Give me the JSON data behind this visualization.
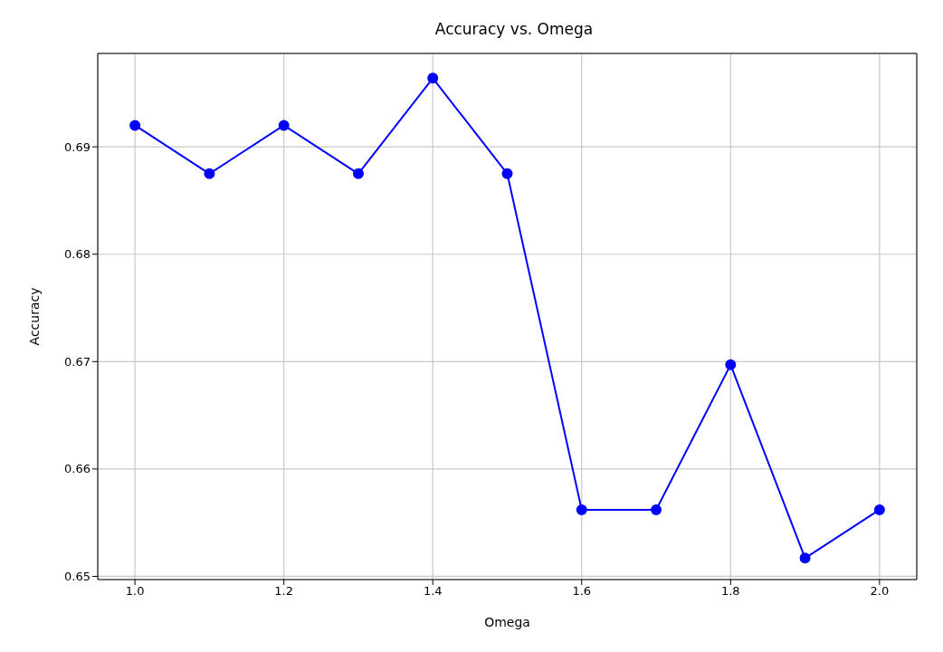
{
  "chart_data": {
    "type": "line",
    "title": "Accuracy vs. Omega",
    "xlabel": "Omega",
    "ylabel": "Accuracy",
    "x": [
      1.0,
      1.1,
      1.2,
      1.3,
      1.4,
      1.5,
      1.6,
      1.7,
      1.8,
      1.9,
      2.0
    ],
    "series": [
      {
        "color": "#0000ff",
        "values": [
          0.692,
          0.6875,
          0.692,
          0.6875,
          0.6964,
          0.6875,
          0.6562,
          0.6562,
          0.6697,
          0.6517,
          0.6562
        ]
      }
    ],
    "xlim": [
      0.95,
      2.05
    ],
    "xticks": [
      {
        "value": 1.0,
        "label": "1.0"
      },
      {
        "value": 1.2,
        "label": "1.2"
      },
      {
        "value": 1.4,
        "label": "1.4"
      },
      {
        "value": 1.6,
        "label": "1.6"
      },
      {
        "value": 1.8,
        "label": "1.8"
      },
      {
        "value": 2.0,
        "label": "2.0"
      }
    ],
    "ylim": [
      0.6497,
      0.6987
    ],
    "yticks": [
      0.65,
      0.66,
      0.67,
      0.68,
      0.69
    ],
    "grid": true,
    "marker": "circle",
    "line_style": "solid",
    "legend": false
  }
}
